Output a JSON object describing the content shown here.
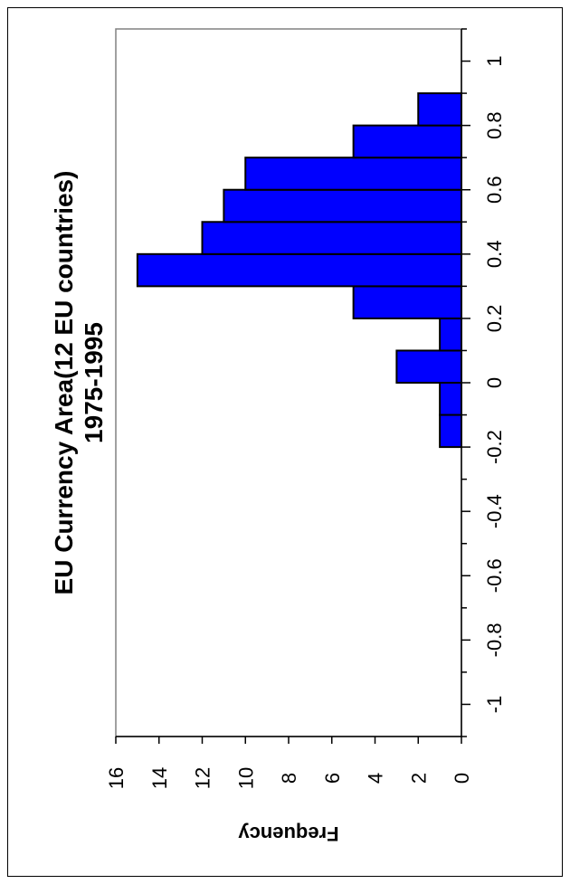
{
  "chart_data": {
    "type": "bar",
    "title": "EU Currency Area(12 EU countries)",
    "subtitle": "1975-1995",
    "xlabel": "",
    "ylabel": "Frequency",
    "bin_edges": [
      -0.2,
      -0.1,
      0.0,
      0.1,
      0.2,
      0.3,
      0.4,
      0.5,
      0.6,
      0.7,
      0.8,
      0.9
    ],
    "values": [
      1,
      1,
      3,
      1,
      5,
      15,
      12,
      11,
      10,
      5,
      2
    ],
    "xlim": [
      -1.1,
      1.1
    ],
    "ylim": [
      0,
      16
    ],
    "x_ticks": [
      -1,
      -0.8,
      -0.6,
      -0.4,
      -0.2,
      0,
      0.2,
      0.4,
      0.6,
      0.8,
      1
    ],
    "x_tick_labels": [
      "-1",
      "-0.8",
      "-0.6",
      "-0.4",
      "-0.2",
      "0",
      "0.2",
      "0.4",
      "0.6",
      "0.8",
      "1"
    ],
    "y_ticks": [
      0,
      2,
      4,
      6,
      8,
      10,
      12,
      14,
      16
    ],
    "y_tick_labels": [
      "0",
      "2",
      "4",
      "6",
      "8",
      "10",
      "12",
      "14",
      "16"
    ],
    "bar_color": "#0000ff",
    "grid": false,
    "orientation": "rotated-90-clockwise"
  }
}
